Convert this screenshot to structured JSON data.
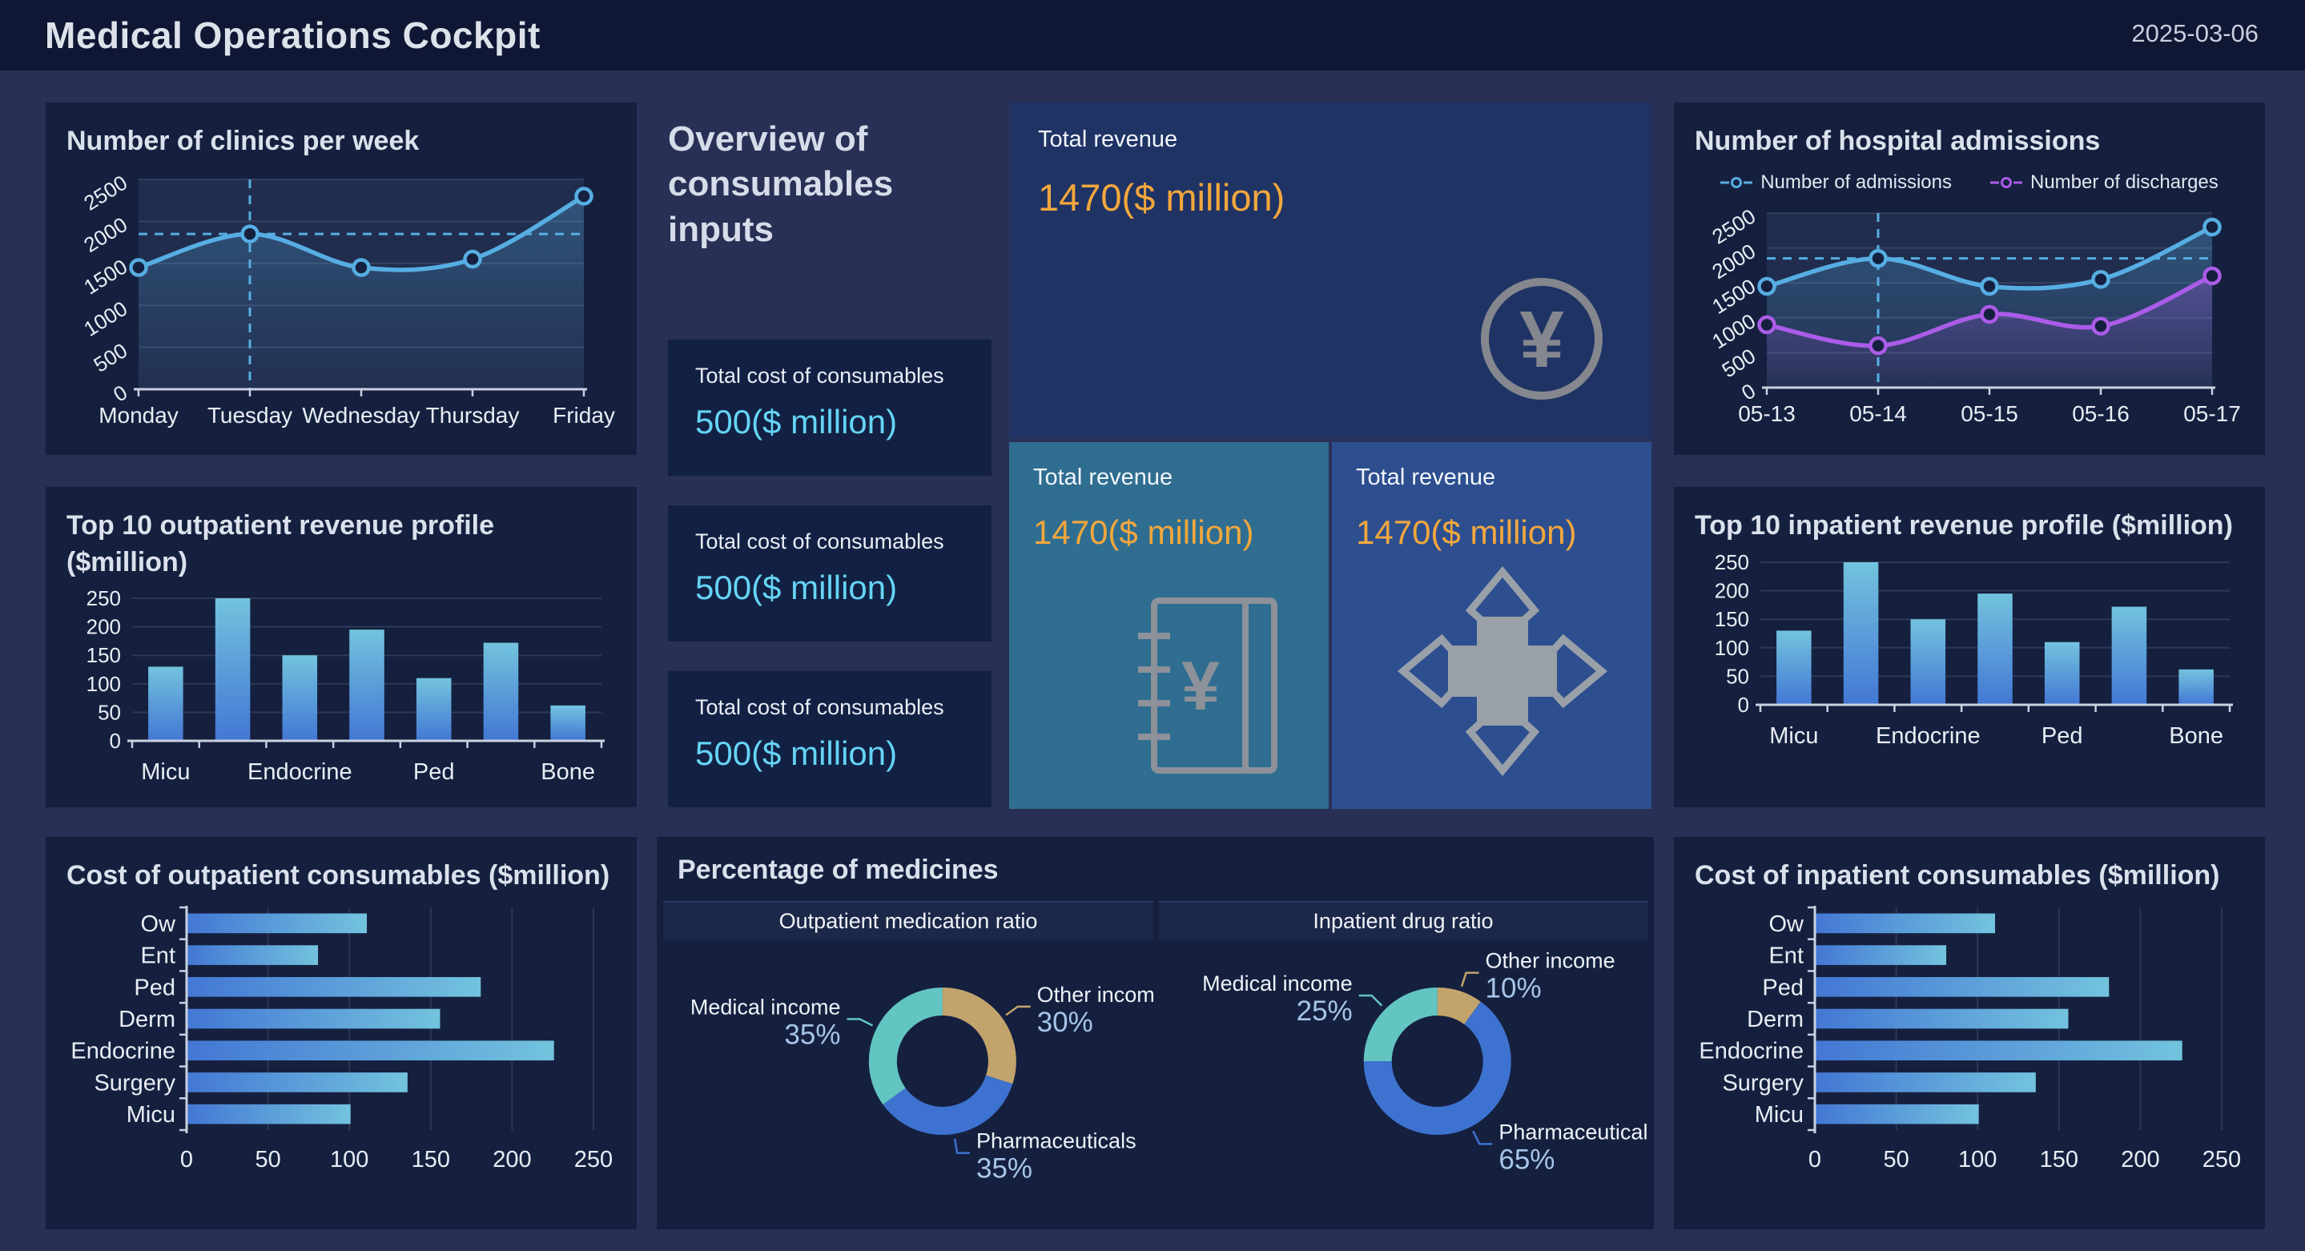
{
  "header": {
    "title": "Medical Operations Cockpit",
    "date": "2025-03-06"
  },
  "overview": {
    "heading": "Overview of consumables inputs",
    "cards": [
      {
        "label": "Total cost of consumables",
        "value": "500($ million)"
      },
      {
        "label": "Total cost of consumables",
        "value": "500($ million)"
      },
      {
        "label": "Total cost of consumables",
        "value": "500($ million)"
      }
    ]
  },
  "revenue": {
    "main": {
      "label": "Total revenue",
      "value": "1470($ million)",
      "icon": "yen-circle-icon"
    },
    "outpatient": {
      "label": "Total revenue",
      "value": "1470($ million)",
      "icon": "ledger-yen-icon"
    },
    "inpatient": {
      "label": "Total revenue",
      "value": "1470($ million)",
      "icon": "medical-cross-icon"
    }
  },
  "medicines": {
    "title": "Percentage of medicines"
  },
  "colors": {
    "page_bg": "#293055",
    "panel_bg": "#15203f",
    "header_bg": "#101735",
    "card_bg": "#122143",
    "revenue_card_bg": "#1f3365",
    "teal_card_bg": "#2f6e91",
    "blue_card_bg": "#2d4f90",
    "accent_orange": "#f3a73c",
    "accent_cyan": "#66d4f5",
    "line_blue": "#56aee3",
    "line_purple": "#ab5ce8",
    "bar_top": "#73c3de",
    "bar_bottom": "#4377d4",
    "pie_teal": "#63c5c1",
    "pie_tan": "#c2a36b",
    "pie_blue": "#3d72d0",
    "axis_text": "#e9edf4",
    "grid": "rgba(205,220,245,0.13)",
    "axis_line": "#c9d1e0",
    "icon_gray": "#8b9099",
    "pct_label": "#a6c5e9"
  },
  "chart_data": [
    {
      "id": "clinics",
      "type": "line",
      "title": "Number of clinics per week",
      "categories": [
        "Monday",
        "Tuesday",
        "Wednesday",
        "Thursday",
        "Friday"
      ],
      "series": [
        {
          "name": "Number of clinics",
          "color": "#56aee3",
          "values": [
            1450,
            1850,
            1450,
            1550,
            2300
          ]
        }
      ],
      "ylim": [
        0,
        2500
      ],
      "ytick_step": 500,
      "grid": true,
      "markline_y": 1850,
      "markline_x": "Tuesday",
      "legend_position": "none"
    },
    {
      "id": "admissions",
      "type": "line",
      "title": "Number of hospital admissions",
      "categories": [
        "05-13",
        "05-14",
        "05-15",
        "05-16",
        "05-17"
      ],
      "series": [
        {
          "name": "Number of admissions",
          "color": "#56aee3",
          "values": [
            1450,
            1850,
            1450,
            1550,
            2300
          ]
        },
        {
          "name": "Number of discharges",
          "color": "#ab5ce8",
          "values": [
            900,
            600,
            1050,
            880,
            1600
          ]
        }
      ],
      "ylim": [
        0,
        2500
      ],
      "ytick_step": 500,
      "grid": true,
      "markline_y": 1850,
      "markline_x": "05-14",
      "legend_position": "top"
    },
    {
      "id": "outpatient_revenue",
      "type": "bar",
      "title": "Top 10 outpatient revenue profile ($million)",
      "categories": [
        "Micu",
        "",
        "Endocrine",
        "",
        "Ped",
        "",
        "Bone"
      ],
      "values": [
        130,
        250,
        150,
        195,
        110,
        172,
        62
      ],
      "ylim": [
        0,
        250
      ],
      "ytick_step": 50,
      "grid": true,
      "ylabel": ""
    },
    {
      "id": "inpatient_revenue",
      "type": "bar",
      "title": "Top 10 inpatient revenue profile ($million)",
      "categories": [
        "Micu",
        "",
        "Endocrine",
        "",
        "Ped",
        "",
        "Bone"
      ],
      "values": [
        130,
        250,
        150,
        195,
        110,
        172,
        62
      ],
      "ylim": [
        0,
        250
      ],
      "ytick_step": 50,
      "grid": true,
      "ylabel": ""
    },
    {
      "id": "outpatient_consumables",
      "type": "hbar",
      "title": "Cost of outpatient consumables ($million)",
      "categories": [
        "Ow",
        "Ent",
        "Ped",
        "Derm",
        "Endocrine",
        "Surgery",
        "Micu"
      ],
      "values": [
        110,
        80,
        180,
        155,
        225,
        135,
        100
      ],
      "xlim": [
        0,
        250
      ],
      "xtick_step": 50,
      "grid": true
    },
    {
      "id": "inpatient_consumables",
      "type": "hbar",
      "title": "Cost of inpatient consumables ($million)",
      "categories": [
        "Ow",
        "Ent",
        "Ped",
        "Derm",
        "Endocrine",
        "Surgery",
        "Micu"
      ],
      "values": [
        110,
        80,
        180,
        155,
        225,
        135,
        100
      ],
      "xlim": [
        0,
        250
      ],
      "xtick_step": 50,
      "grid": true
    },
    {
      "id": "outpatient_medication_ratio",
      "type": "pie",
      "title": "Outpatient medication ratio",
      "slices": [
        {
          "label": "Other income",
          "value": 30,
          "color": "#c2a36b"
        },
        {
          "label": "Pharmaceuticals",
          "value": 35,
          "color": "#3d72d0"
        },
        {
          "label": "Medical income",
          "value": 35,
          "color": "#63c5c1"
        }
      ]
    },
    {
      "id": "inpatient_drug_ratio",
      "type": "pie",
      "title": "Inpatient drug ratio",
      "slices": [
        {
          "label": "Other income",
          "value": 10,
          "color": "#c2a36b"
        },
        {
          "label": "Pharmaceuticals",
          "value": 65,
          "color": "#3d72d0"
        },
        {
          "label": "Medical income",
          "value": 25,
          "color": "#63c5c1"
        }
      ]
    }
  ]
}
